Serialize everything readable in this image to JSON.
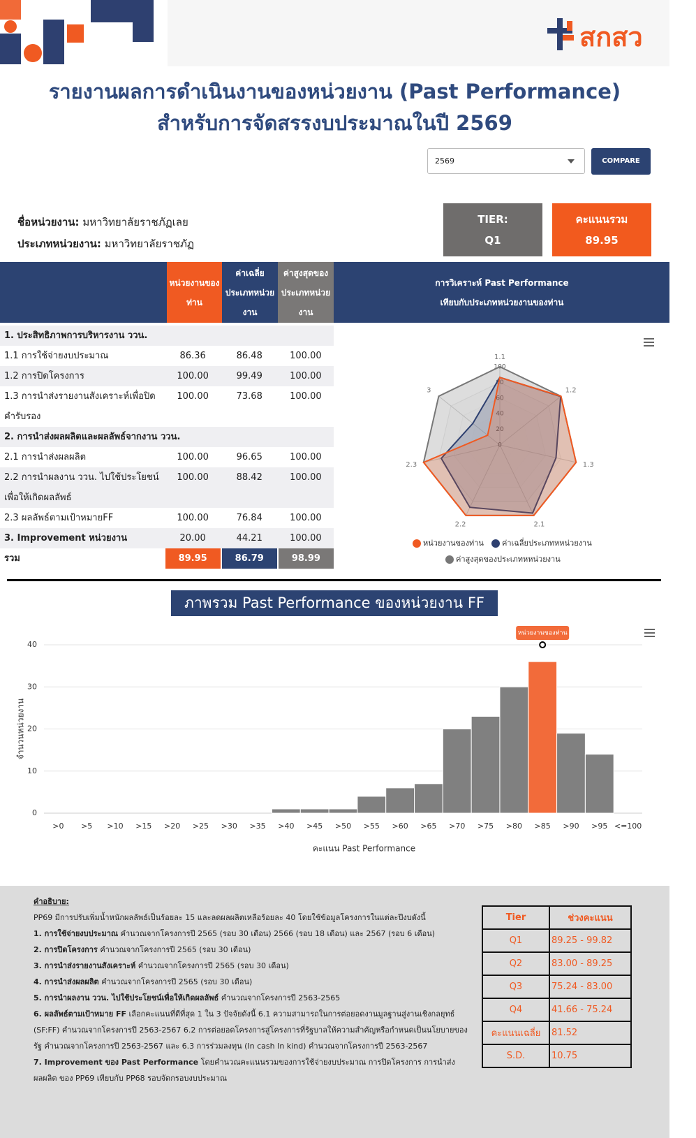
{
  "header": {
    "logo": "สกสว",
    "title_line1": "รายงานผลการดำเนินงานของหน่วยงาน (Past Performance)",
    "title_line2": "สำหรับการจัดสรรงบประมาณในปี 2569",
    "select": "2569",
    "button": "COMPARE"
  },
  "unit": {
    "name_label": "ชื่อหน่วยงาน:",
    "name": "มหาวิทยาลัยราชภัฏเลย",
    "type_label": "ประเภทหน่วยงาน:",
    "type": "มหาวิทยาลัยราชภัฏ",
    "tier_label": "TIER:",
    "tier": "Q1",
    "score_label": "คะแนนรวม",
    "score": "89.95"
  },
  "table": {
    "headers": [
      "หน่วยงานของท่าน",
      "ค่าเฉลี่ยประเภทหน่วยงาน",
      "ค่าสูงสุดของประเภทหน่วยงาน"
    ],
    "analysis_header": "การวิเคราะห์ Past Performance เทียบกับประเภทหน่วยงานของท่าน",
    "rows": [
      {
        "label": "1. ประสิทธิภาพการบริหารงาน ววน."
      },
      {
        "label": "1.1 การใช้จ่ายงบประมาณ",
        "values": [
          "86.36",
          "86.48",
          "100.00"
        ]
      },
      {
        "label": "1.2 การปิดโครงการ",
        "values": [
          "100.00",
          "99.49",
          "100.00"
        ]
      },
      {
        "label": "1.3 การนำส่งรายงานสังเคราะห์เพื่อปิดคำรับรอง",
        "values": [
          "100.00",
          "73.68",
          "100.00"
        ]
      },
      {
        "label": "2. การนำส่งผลผลิตและผลลัพธ์จากงาน ววน."
      },
      {
        "label": "2.1 การนำส่งผลผลิต",
        "values": [
          "100.00",
          "96.65",
          "100.00"
        ]
      },
      {
        "label": "2.2 การนำผลงาน ววน. ไปใช้ประโยชน์เพื่อให้เกิดผลลัพธ์",
        "values": [
          "100.00",
          "88.42",
          "100.00"
        ]
      },
      {
        "label": "2.3 ผลลัพธ์ตามเป้าหมายFF",
        "values": [
          "100.00",
          "76.84",
          "100.00"
        ]
      },
      {
        "label": "3. Improvement หน่วยงาน",
        "values": [
          "20.00",
          "44.21",
          "100.00"
        ],
        "bold": true
      }
    ],
    "total": {
      "label": "รวม",
      "values": [
        "89.95",
        "86.79",
        "98.99"
      ]
    }
  },
  "chart_data": [
    {
      "type": "radar",
      "categories": [
        "1.1",
        "1.2",
        "1.3",
        "2.1",
        "2.2",
        "2.3",
        "3"
      ],
      "ylim": [
        0,
        100
      ],
      "yticks": [
        0,
        20,
        40,
        60,
        80,
        100
      ],
      "series": [
        {
          "name": "หน่วยงานของท่าน",
          "color": "#f05a22",
          "values": [
            86.36,
            100,
            100,
            100,
            100,
            100,
            20
          ]
        },
        {
          "name": "ค่าเฉลี่ยประเภทหหน่วยงาน",
          "color": "#2e4070",
          "values": [
            86.48,
            99.49,
            73.68,
            96.65,
            88.42,
            76.84,
            44.21
          ]
        },
        {
          "name": "ค่าสูงสุดของประเภทหหน่วยงาน",
          "color": "#777777",
          "values": [
            100,
            100,
            100,
            100,
            100,
            100,
            100
          ]
        }
      ]
    },
    {
      "type": "bar",
      "title": "ภาพรวม Past Performance ของหน่วยงาน FF",
      "annotation": "หน่วยงานของท่าน",
      "categories": [
        ">0",
        ">5",
        ">10",
        ">15",
        ">20",
        ">25",
        ">30",
        ">35",
        ">40",
        ">45",
        ">50",
        ">55",
        ">60",
        ">65",
        ">70",
        ">75",
        ">80",
        ">85",
        ">90",
        ">95",
        "<=100"
      ],
      "values": [
        0,
        0,
        0,
        0,
        0,
        0,
        0,
        0,
        1,
        1,
        1,
        4,
        6,
        7,
        20,
        23,
        30,
        36,
        19,
        14,
        0
      ],
      "colors": [
        "#808080",
        "#808080",
        "#808080",
        "#808080",
        "#808080",
        "#808080",
        "#808080",
        "#808080",
        "#808080",
        "#808080",
        "#808080",
        "#808080",
        "#808080",
        "#808080",
        "#808080",
        "#808080",
        "#808080",
        "#f26b3a",
        "#808080",
        "#808080",
        "#808080"
      ],
      "ylim": [
        0,
        40
      ],
      "yticks": [
        0,
        10,
        20,
        30,
        40
      ],
      "grid": true,
      "xlabel": "คะแนน Past Performance",
      "ylabel": "จำนวนหน่วยงาน"
    }
  ],
  "notes": {
    "title": "คำอธิบาย:",
    "intro": "PP69 มีการปรับเพิ่มน้ำหนักผลลัพธ์เป็นร้อยละ 15 และลดผลผลิตเหลือร้อยละ 40 โดยใช้ข้อมูลโครงการในแต่ละปีงบดังนี้",
    "items": [
      {
        "bold": "1. การใช้จ่ายงบประมาณ",
        "text": "คำนวณจากโครงการปี 2565 (รอบ 30 เดือน) 2566 (รอบ 18 เดือน) และ 2567 (รอบ 6 เดือน)"
      },
      {
        "bold": "2. การปิดโครงการ",
        "text": "คำนวณจากโครงการปี 2565 (รอบ 30 เดือน)"
      },
      {
        "bold": "3. การนำส่งรายงานสังเคราะห์",
        "text": "คำนวณจากโครงการปี 2565 (รอบ 30 เดือน)"
      },
      {
        "bold": "4. การนำส่งผลผลิต",
        "text": "คำนวณจากโครงการปี 2565 (รอบ 30 เดือน)"
      },
      {
        "bold": "5. การนำผลงาน ววน. ไปใช้ประโยชน์เพื่อให้เกิดผลลัพธ์",
        "text": "คำนวณจากโครงการปี 2563-2565"
      },
      {
        "bold": "6. ผลลัพธ์ตามเป้าหมาย FF",
        "text": "เลือกคะแนนที่ดีที่สุด 1 ใน 3 ปัจจัยดังนี้ 6.1 ความสามารถในการต่อยอดงานมูลฐานสู่งานเชิงกลยุทธ์ (SF:FF) คำนวณจากโครงการปี 2563-2567 6.2 การต่อยอดโครงการสู่โครงการที่รัฐบาลให้ความสำคัญหรือกำหนดเป็นนโยบายของรัฐ คำนวณจากโครงการปี 2563-2567 และ 6.3 การร่วมลงทุน (In cash In kind) คำนวณจากโครงการปี 2563-2567"
      },
      {
        "bold": "7. Improvement ของ Past Performance",
        "text": "โดยคำนวณคะแนนรวมของการใช้จ่ายงบประมาณ การปิดโครงการ การนำส่งผลผลิต ของ PP69 เทียบกับ PP68 รอบจัดกรอบงบประมาณ"
      }
    ]
  },
  "tier_table": {
    "headers": [
      "Tier",
      "ช่วงคะแนน"
    ],
    "rows": [
      [
        "Q1",
        "89.25 - 99.82"
      ],
      [
        "Q2",
        "83.00 - 89.25"
      ],
      [
        "Q3",
        "75.24 - 83.00"
      ],
      [
        "Q4",
        "41.66 - 75.24"
      ],
      [
        "คะแนนเฉลี่ย",
        "81.52"
      ],
      [
        "S.D.",
        "10.75"
      ]
    ]
  }
}
